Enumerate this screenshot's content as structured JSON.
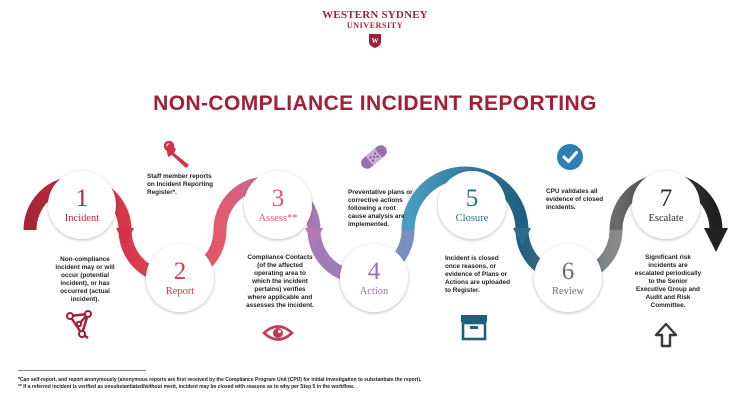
{
  "header": {
    "logo_line1": "WESTERN SYDNEY",
    "logo_line2": "UNIVERSITY",
    "logo_mark": "W",
    "title": "NON-COMPLIANCE INCIDENT REPORTING"
  },
  "steps": [
    {
      "number": "1",
      "label": "Incident",
      "description": "Non-compliance incident may or will occur (potential incident), or has occurred (actual incident).",
      "icon": "network-icon"
    },
    {
      "number": "2",
      "label": "Report",
      "description": "Staff member reports on Incident Reporting Register*.",
      "icon": "wrench-icon"
    },
    {
      "number": "3",
      "label": "Assess**",
      "description": "Compliance Contacts (of the affected operating area to which the incident pertains) verifies where applicable and assesses the incident.",
      "icon": "eye-icon"
    },
    {
      "number": "4",
      "label": "Action",
      "description": "Preventative plans or corrective actions following a root cause analysis are implemented.",
      "icon": "bandage-icon"
    },
    {
      "number": "5",
      "label": "Closure",
      "description": "Incident is closed once reasons, or evidence of Plans or Actions are uploaded to Register.",
      "icon": "archive-box-icon"
    },
    {
      "number": "6",
      "label": "Review",
      "description": "CPU validates all evidence of closed incidents.",
      "icon": "checkmark-icon"
    },
    {
      "number": "7",
      "label": "Escalate",
      "description": "Significant risk incidents are escalated periodically to the Senior Executive Group and Audit and Risk Committee.",
      "icon": "up-arrow-icon"
    }
  ],
  "footnotes": [
    "*Can self-report, and report anonymously (anonymous reports are first received by the Compliance Program Unit (CPU) for initial investigation to substantiate the report).",
    "** If a referred incident is verified as unsubstantiated/without merit, incident may be closed with reasons as to why per Step 5 in the workflow."
  ],
  "colors": {
    "brand": "#a31f34",
    "step1": "#c2313f",
    "step2": "#d9364a",
    "step3": "#e0546a",
    "step4": "#8f67a6",
    "step5": "#2a6c8c",
    "step6": "#6e6e6e",
    "step7": "#2a2a2a"
  }
}
